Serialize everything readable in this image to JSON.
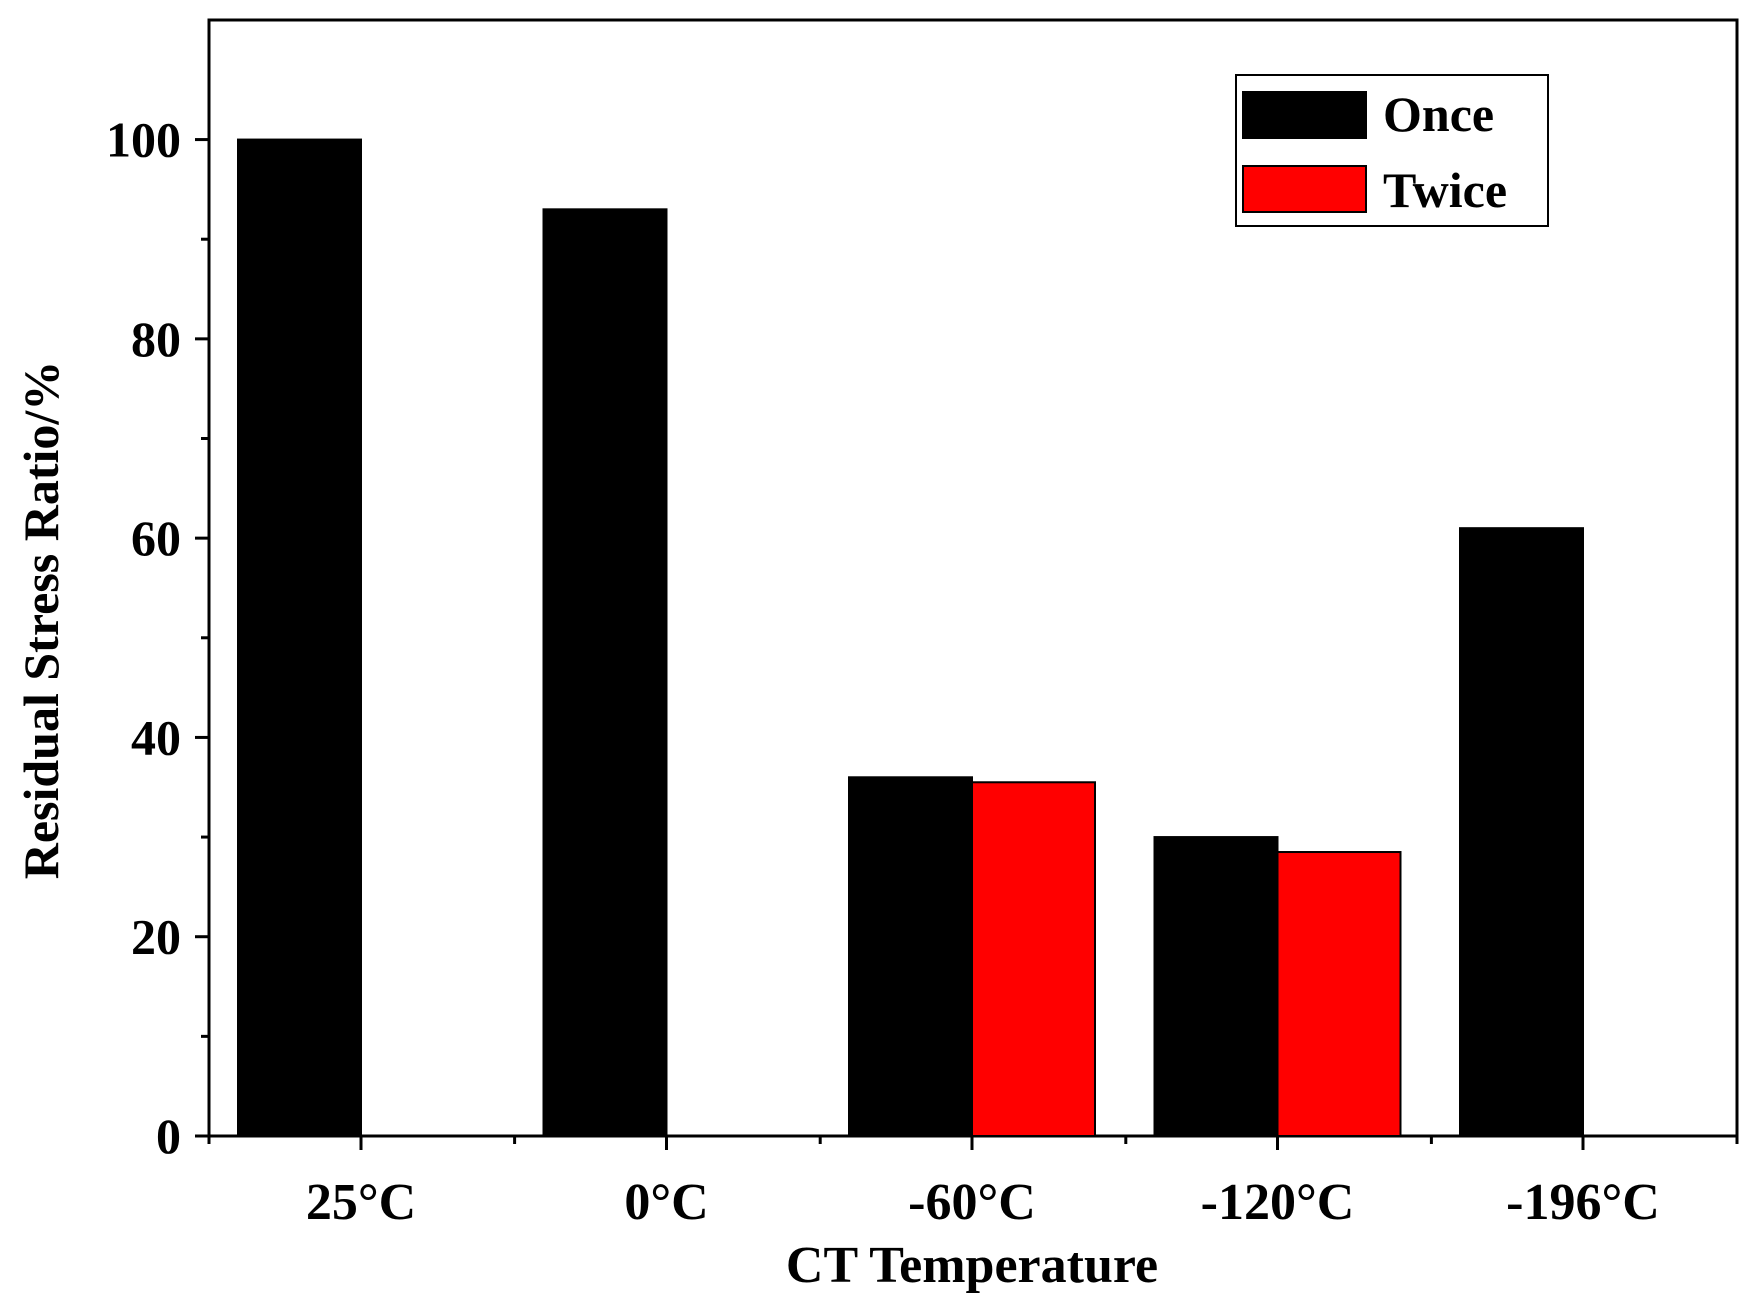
{
  "chart_data": {
    "type": "bar",
    "categories": [
      "25°C",
      "0°C",
      "-60°C",
      "-120°C",
      "-196°C"
    ],
    "series": [
      {
        "name": "Once",
        "values": [
          100,
          93,
          36,
          30,
          61
        ],
        "color": "#000000"
      },
      {
        "name": "Twice",
        "values": [
          null,
          null,
          35.5,
          28.5,
          null
        ],
        "color": "#ff0000"
      }
    ],
    "title": "",
    "xlabel": "CT Temperature",
    "ylabel": "Residual Stress Ratio/%",
    "ylim": [
      0,
      112
    ],
    "yticks": [
      0,
      20,
      40,
      60,
      80,
      100
    ],
    "yticks_minor": [
      10,
      30,
      50,
      70,
      90
    ],
    "legend_position": "top-right",
    "grid": false
  }
}
